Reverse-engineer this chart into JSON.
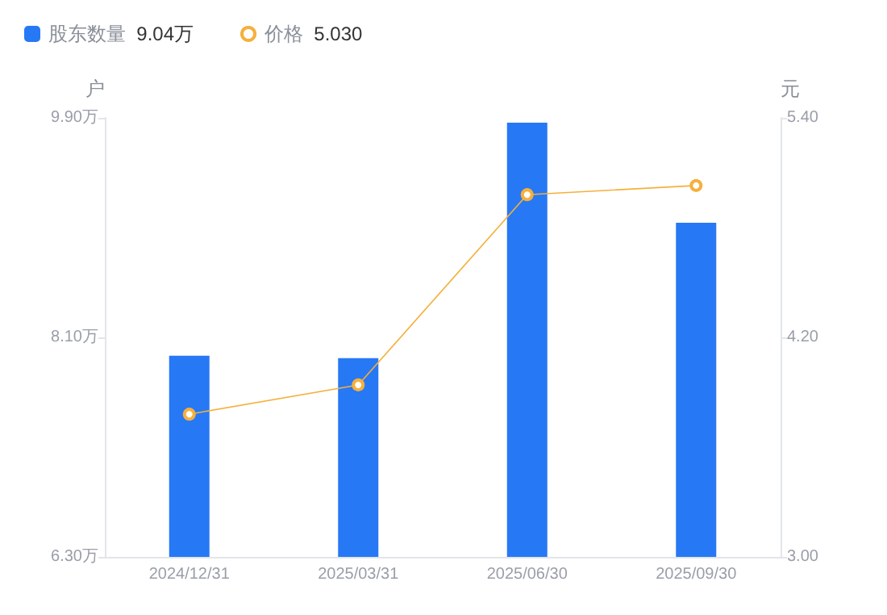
{
  "chart_data": {
    "type": "bar",
    "categories": [
      "2024/12/31",
      "2025/03/31",
      "2025/06/30",
      "2025/09/30"
    ],
    "ylabel": "户",
    "y2label": "元",
    "series": [
      {
        "name": "股东数量",
        "color": "#2778f5",
        "values": [
          7.95,
          7.93,
          9.86,
          9.04
        ]
      },
      {
        "name": "价格",
        "type": "line",
        "axis": "y2",
        "color": "#f5b03c",
        "marker": "circle",
        "values": [
          3.78,
          3.94,
          4.98,
          5.03
        ]
      }
    ],
    "ylim": [
      6.3,
      9.9
    ],
    "yticks": [
      {
        "value": 6.3,
        "label": "6.30万"
      },
      {
        "value": 8.1,
        "label": "8.10万"
      },
      {
        "value": 9.9,
        "label": "9.90万"
      }
    ],
    "y2lim": [
      3.0,
      5.4
    ],
    "y2ticks": [
      {
        "value": 3.0,
        "label": "3.00"
      },
      {
        "value": 4.2,
        "label": "4.20"
      },
      {
        "value": 5.4,
        "label": "5.40"
      }
    ],
    "annotations": [
      "9.04万",
      "5.030"
    ],
    "legend": "top left",
    "grid": false
  }
}
